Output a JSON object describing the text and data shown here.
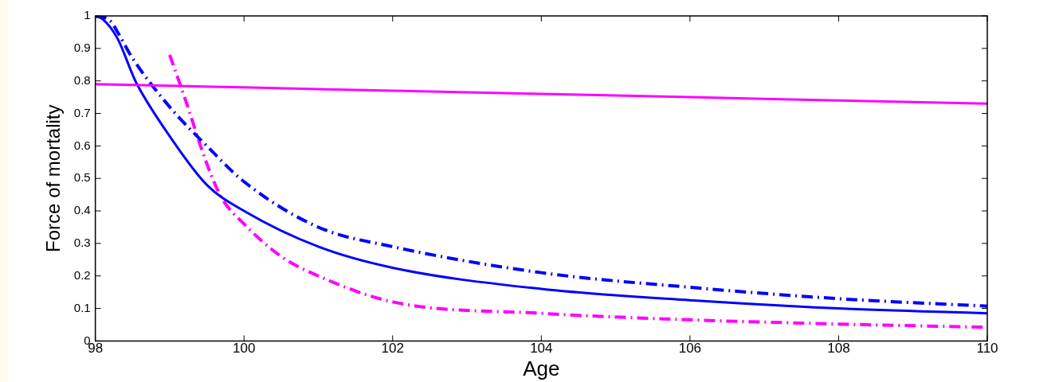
{
  "chart_data": {
    "type": "line",
    "xlabel": "Age",
    "ylabel": "Force of mortality",
    "xlim": [
      98,
      110
    ],
    "xticks": [
      98,
      100,
      102,
      104,
      106,
      108,
      110
    ],
    "ylim": [
      0,
      1
    ],
    "yticks": [
      0,
      0.1,
      0.2,
      0.3,
      0.4,
      0.5,
      0.6,
      0.7,
      0.8,
      0.9,
      1
    ],
    "grid": false,
    "legend": false,
    "marker": "none",
    "series": [
      {
        "color": "#ff00ff",
        "line_style": "solid",
        "x": [
          98,
          100,
          102,
          104,
          106,
          108,
          110
        ],
        "values": [
          0.79,
          0.78,
          0.77,
          0.76,
          0.75,
          0.74,
          0.73
        ]
      },
      {
        "color": "#0000ff",
        "line_style": "solid",
        "x": [
          98,
          98.1,
          98.3,
          98.5,
          98.56,
          99,
          99.5,
          100,
          101,
          102,
          104,
          106,
          108,
          110
        ],
        "values": [
          1.0,
          0.99,
          0.93,
          0.82,
          0.79,
          0.63,
          0.48,
          0.4,
          0.29,
          0.225,
          0.16,
          0.125,
          0.1,
          0.085
        ]
      },
      {
        "color": "#0000ff",
        "line_style": "dashed",
        "x": [
          98,
          98.2,
          98.3,
          98.5,
          99,
          99.5,
          100,
          101,
          102,
          104,
          106,
          108,
          110
        ],
        "values": [
          1.0,
          0.985,
          0.95,
          0.87,
          0.72,
          0.6,
          0.49,
          0.35,
          0.29,
          0.21,
          0.165,
          0.13,
          0.107
        ]
      },
      {
        "color": "#ff00ff",
        "line_style": "dashed",
        "x": [
          99,
          99.2,
          99.5,
          99.7,
          100,
          100.5,
          101,
          102,
          104,
          106,
          108,
          110
        ],
        "values": [
          0.88,
          0.75,
          0.545,
          0.44,
          0.36,
          0.26,
          0.2,
          0.12,
          0.085,
          0.065,
          0.052,
          0.042
        ]
      }
    ]
  }
}
